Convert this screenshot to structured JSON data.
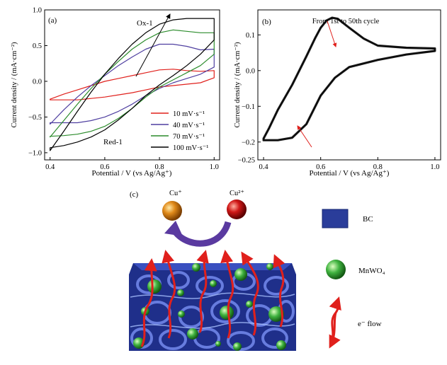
{
  "chart_data": [
    {
      "type": "line",
      "panel_label": "(a)",
      "xlabel": "Potential / V (vs Ag/Ag⁺)",
      "ylabel": "Current density / (mA·cm⁻²)",
      "xlim": [
        0.38,
        1.02
      ],
      "ylim": [
        -1.1,
        1.0
      ],
      "xticks": [
        "0.4",
        "0.6",
        "0.8",
        "1.0"
      ],
      "yticks": [
        "1.0",
        "0.5",
        "0.0",
        "−0.5",
        "−1.0"
      ],
      "ytick_values": [
        1.0,
        0.5,
        0.0,
        -0.5,
        -1.0
      ],
      "xtick_values": [
        0.4,
        0.6,
        0.8,
        1.0
      ],
      "annotations": [
        "Ox-1",
        "Red-1"
      ],
      "legend_placement": "bottom-right",
      "series": [
        {
          "name": "10 mV·s⁻¹",
          "color": "#e0201c",
          "x": [
            0.4,
            0.45,
            0.5,
            0.55,
            0.6,
            0.65,
            0.7,
            0.75,
            0.8,
            0.85,
            0.9,
            0.95,
            1.0,
            1.0,
            0.95,
            0.9,
            0.85,
            0.8,
            0.75,
            0.7,
            0.65,
            0.6,
            0.55,
            0.5,
            0.45,
            0.4,
            0.4
          ],
          "y": [
            -0.25,
            -0.18,
            -0.12,
            -0.06,
            0.0,
            0.04,
            0.08,
            0.12,
            0.16,
            0.17,
            0.15,
            0.14,
            0.15,
            0.05,
            -0.02,
            -0.04,
            -0.06,
            -0.08,
            -0.12,
            -0.16,
            -0.19,
            -0.22,
            -0.24,
            -0.26,
            -0.26,
            -0.26,
            -0.25
          ]
        },
        {
          "name": "40 mV·s⁻¹",
          "color": "#4f3fa0",
          "x": [
            0.4,
            0.45,
            0.5,
            0.55,
            0.6,
            0.65,
            0.7,
            0.75,
            0.8,
            0.85,
            0.9,
            0.95,
            1.0,
            1.0,
            0.95,
            0.9,
            0.85,
            0.8,
            0.75,
            0.7,
            0.65,
            0.6,
            0.55,
            0.5,
            0.45,
            0.4,
            0.4
          ],
          "y": [
            -0.6,
            -0.4,
            -0.22,
            -0.06,
            0.08,
            0.22,
            0.34,
            0.45,
            0.52,
            0.52,
            0.49,
            0.44,
            0.45,
            0.2,
            0.1,
            0.04,
            -0.02,
            -0.1,
            -0.2,
            -0.32,
            -0.42,
            -0.5,
            -0.55,
            -0.58,
            -0.58,
            -0.58,
            -0.6
          ]
        },
        {
          "name": "70 mV·s⁻¹",
          "color": "#2c8c2c",
          "x": [
            0.4,
            0.45,
            0.5,
            0.55,
            0.6,
            0.65,
            0.7,
            0.75,
            0.8,
            0.85,
            0.9,
            0.95,
            1.0,
            1.0,
            0.95,
            0.9,
            0.85,
            0.8,
            0.75,
            0.7,
            0.65,
            0.6,
            0.55,
            0.5,
            0.45,
            0.4,
            0.4
          ],
          "y": [
            -0.78,
            -0.55,
            -0.32,
            -0.1,
            0.1,
            0.28,
            0.45,
            0.58,
            0.68,
            0.72,
            0.7,
            0.68,
            0.68,
            0.38,
            0.22,
            0.12,
            0.02,
            -0.08,
            -0.22,
            -0.38,
            -0.52,
            -0.63,
            -0.7,
            -0.74,
            -0.76,
            -0.77,
            -0.78
          ]
        },
        {
          "name": "100 mV·s⁻¹",
          "color": "#000000",
          "x": [
            0.4,
            0.45,
            0.5,
            0.55,
            0.6,
            0.65,
            0.7,
            0.75,
            0.8,
            0.85,
            0.9,
            0.95,
            1.0,
            1.0,
            0.95,
            0.9,
            0.85,
            0.8,
            0.75,
            0.7,
            0.65,
            0.6,
            0.55,
            0.5,
            0.45,
            0.4,
            0.4
          ],
          "y": [
            -0.97,
            -0.7,
            -0.42,
            -0.15,
            0.1,
            0.32,
            0.52,
            0.68,
            0.8,
            0.86,
            0.88,
            0.88,
            0.88,
            0.58,
            0.38,
            0.22,
            0.08,
            -0.05,
            -0.2,
            -0.38,
            -0.54,
            -0.68,
            -0.78,
            -0.85,
            -0.9,
            -0.93,
            -0.97
          ]
        }
      ]
    },
    {
      "type": "line",
      "panel_label": "(b)",
      "xlabel": "Potential / V (vs Ag/Ag⁺)",
      "ylabel": "Current density / (mA·cm⁻²)",
      "xlim": [
        0.38,
        1.02
      ],
      "ylim": [
        -0.25,
        0.17
      ],
      "xticks": [
        "0.4",
        "0.6",
        "0.8",
        "1.0"
      ],
      "xtick_values": [
        0.4,
        0.6,
        0.8,
        1.0
      ],
      "yticks": [
        "0.1",
        "0.0",
        "−0.1",
        "−0.2",
        "−0.25"
      ],
      "ytick_values": [
        0.1,
        0.0,
        -0.1,
        -0.2,
        -0.25
      ],
      "annotation": "From 1st to 50th cycle",
      "series": [
        {
          "name": "",
          "color": "#000000",
          "x": [
            0.4,
            0.42,
            0.45,
            0.5,
            0.55,
            0.58,
            0.6,
            0.62,
            0.64,
            0.66,
            0.7,
            0.75,
            0.8,
            0.9,
            1.0,
            1.0,
            0.9,
            0.8,
            0.7,
            0.65,
            0.6,
            0.55,
            0.5,
            0.45,
            0.42,
            0.4
          ],
          "y": [
            -0.19,
            -0.16,
            -0.11,
            -0.04,
            0.04,
            0.09,
            0.12,
            0.14,
            0.148,
            0.145,
            0.12,
            0.09,
            0.07,
            0.064,
            0.062,
            0.055,
            0.045,
            0.03,
            0.01,
            -0.02,
            -0.07,
            -0.15,
            -0.188,
            -0.195,
            -0.195,
            -0.195
          ]
        }
      ]
    }
  ],
  "schematic": {
    "panel_label": "(c)",
    "cu_plus": "Cu⁺",
    "cu2_plus": "Cu²⁺",
    "legend": {
      "bc": "BC",
      "mnwo4": "MnWO₄",
      "flow": "e⁻ flow"
    },
    "colors": {
      "bc": "#2a3d9a",
      "mnwo4": "#3fb23f",
      "cu_plus": "#e08a1a",
      "cu2_plus": "#d01818",
      "arrow": "#5a3aa0",
      "flow": "#e0201c"
    }
  }
}
